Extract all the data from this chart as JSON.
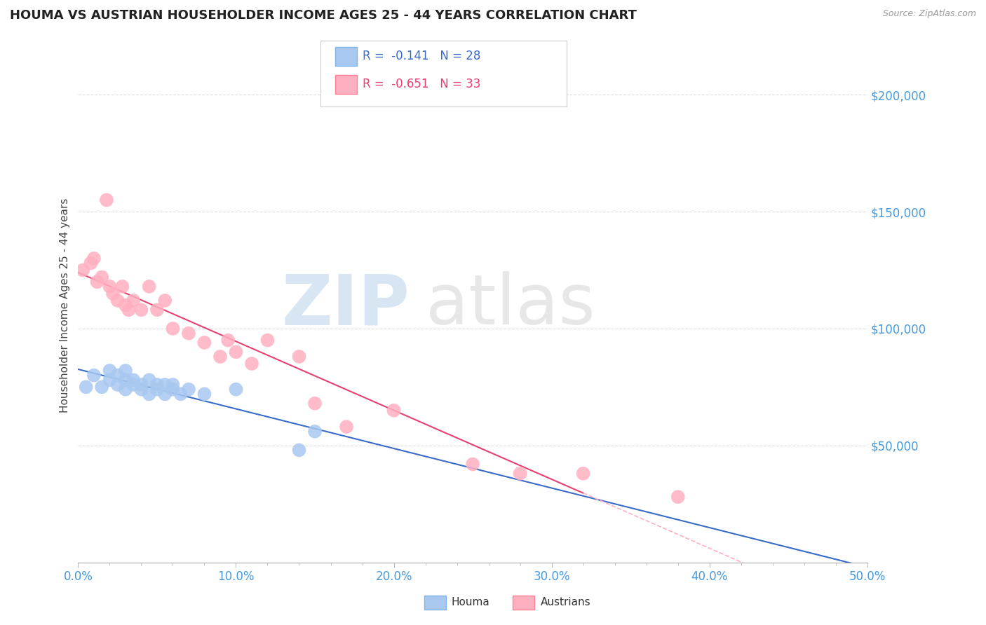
{
  "title": "HOUMA VS AUSTRIAN HOUSEHOLDER INCOME AGES 25 - 44 YEARS CORRELATION CHART",
  "source": "Source: ZipAtlas.com",
  "ylabel": "Householder Income Ages 25 - 44 years",
  "xlim": [
    0.0,
    50.0
  ],
  "ylim": [
    0,
    220000
  ],
  "houma_color": "#A8C8F0",
  "houma_edge_color": "#7EB4EA",
  "austrians_color": "#FFB0C0",
  "austrians_edge_color": "#FF8095",
  "houma_line_color": "#3A6BC9",
  "austrians_line_color": "#E84070",
  "austrians_line_ext_color": "#FFB0C0",
  "background_color": "#FFFFFF",
  "grid_color": "#CCCCCC",
  "legend_r1": "R =  -0.141",
  "legend_n1": "N = 28",
  "legend_r2": "R =  -0.651",
  "legend_n2": "N = 33",
  "houma_x": [
    0.5,
    1.0,
    1.5,
    2.0,
    2.0,
    2.5,
    2.5,
    3.0,
    3.0,
    3.0,
    3.5,
    3.5,
    4.0,
    4.0,
    4.5,
    4.5,
    5.0,
    5.0,
    5.5,
    5.5,
    6.0,
    6.0,
    6.5,
    7.0,
    8.0,
    10.0,
    14.0,
    15.0
  ],
  "houma_y": [
    75000,
    80000,
    75000,
    78000,
    82000,
    76000,
    80000,
    74000,
    78000,
    82000,
    76000,
    78000,
    74000,
    76000,
    72000,
    78000,
    74000,
    76000,
    72000,
    76000,
    74000,
    76000,
    72000,
    74000,
    72000,
    74000,
    48000,
    56000
  ],
  "austrians_x": [
    0.3,
    0.8,
    1.0,
    1.2,
    1.5,
    1.8,
    2.0,
    2.2,
    2.5,
    2.8,
    3.0,
    3.2,
    3.5,
    4.0,
    4.5,
    5.0,
    5.5,
    6.0,
    7.0,
    8.0,
    9.0,
    9.5,
    10.0,
    11.0,
    12.0,
    14.0,
    15.0,
    17.0,
    20.0,
    25.0,
    28.0,
    32.0,
    38.0
  ],
  "austrians_y": [
    125000,
    128000,
    130000,
    120000,
    122000,
    155000,
    118000,
    115000,
    112000,
    118000,
    110000,
    108000,
    112000,
    108000,
    118000,
    108000,
    112000,
    100000,
    98000,
    94000,
    88000,
    95000,
    90000,
    85000,
    95000,
    88000,
    68000,
    58000,
    65000,
    42000,
    38000,
    38000,
    28000
  ]
}
